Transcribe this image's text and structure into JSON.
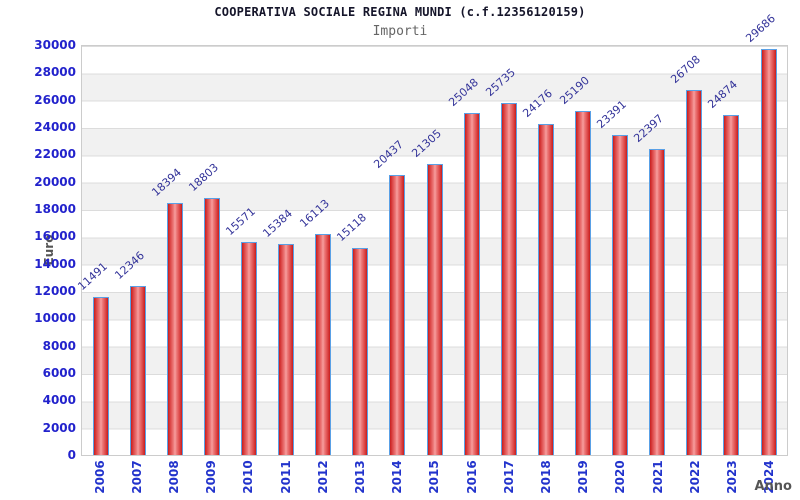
{
  "title": "COOPERATIVA SOCIALE REGINA MUNDI (c.f.12356120159)",
  "subtitle": "Importi",
  "colors": {
    "title_text": "#15152a",
    "subtitle_text": "#666666",
    "axis_tick_text": "#2222cc",
    "bar_value_text": "#333399",
    "axis_title_text": "#555555",
    "bar_fill_edge": "#c81d1d",
    "bar_fill_center": "#f7a0a0",
    "bar_border": "#59a0e6",
    "band_gray": "#f1f1f1",
    "gridline": "#dcdcdc",
    "plot_border": "#cccccc"
  },
  "chart_data": {
    "type": "bar",
    "title": "COOPERATIVA SOCIALE REGINA MUNDI (c.f.12356120159)",
    "subtitle": "Importi",
    "xlabel": "Anno",
    "ylabel": "Euro",
    "categories": [
      "2006",
      "2007",
      "2008",
      "2009",
      "2010",
      "2011",
      "2012",
      "2013",
      "2014",
      "2015",
      "2016",
      "2017",
      "2018",
      "2019",
      "2020",
      "2021",
      "2022",
      "2023",
      "2024"
    ],
    "values": [
      11491,
      12346,
      18394,
      18803,
      15571,
      15384,
      16113,
      15118,
      20437,
      21305,
      25048,
      25735,
      24176,
      25190,
      23391,
      22397,
      26708,
      24874,
      29686
    ],
    "ylim": [
      0,
      30000
    ],
    "ytick_step": 2000,
    "y_ticks": [
      0,
      2000,
      4000,
      6000,
      8000,
      10000,
      12000,
      14000,
      16000,
      18000,
      20000,
      22000,
      24000,
      26000,
      28000,
      30000
    ],
    "grid": "horizontal-bands",
    "legend": "none"
  }
}
